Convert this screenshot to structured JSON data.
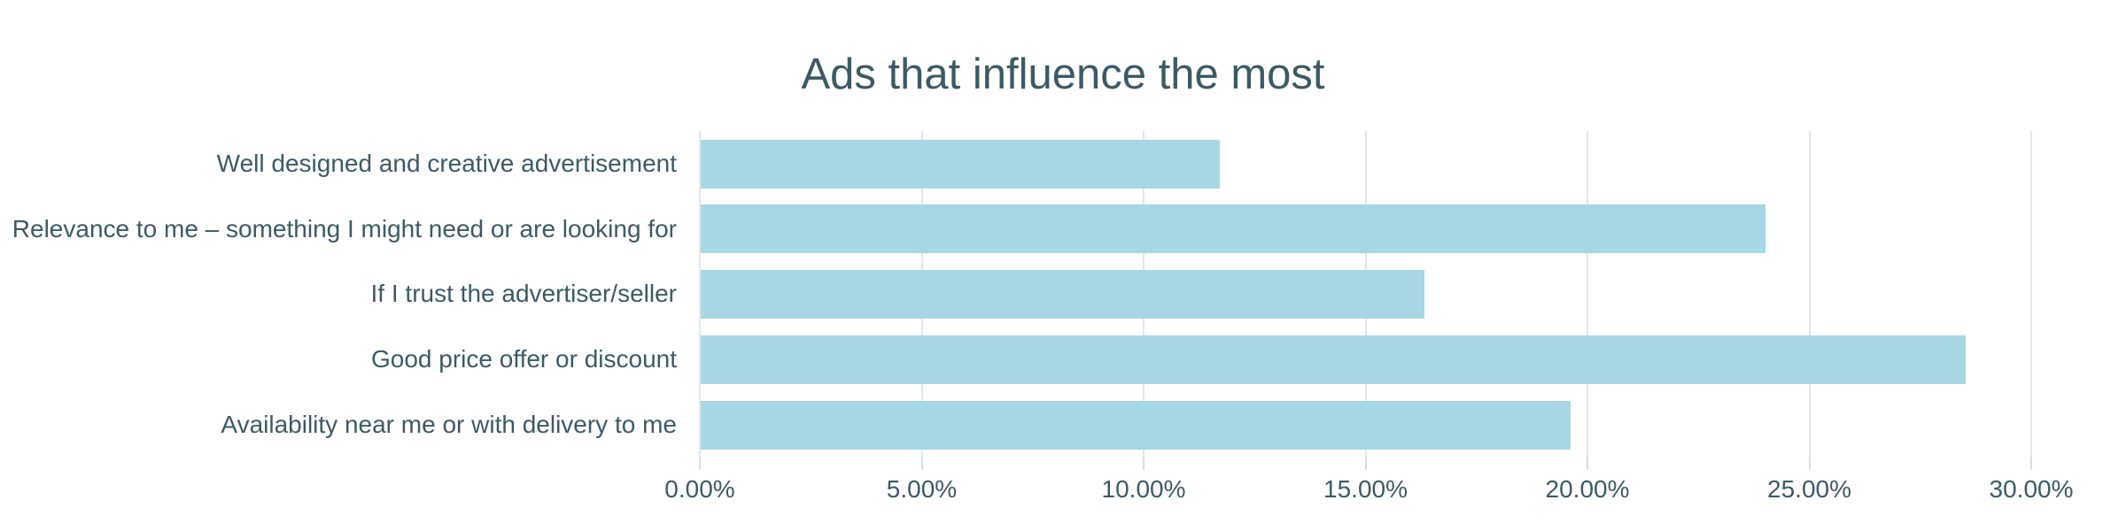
{
  "title": "Ads that influence the most",
  "colors": {
    "background": "#ffffff",
    "bar_fill": "#a6d7e2",
    "gridline": "#dde9ef",
    "tick_mark": "#cfe0e8",
    "text": "#3c5a66"
  },
  "chart_data": {
    "type": "bar",
    "orientation": "horizontal",
    "title": "Ads that influence the most",
    "categories": [
      "Well designed and creative advertisement",
      "Relevance to me – something I might need or are looking for",
      "If I trust the advertiser/seller",
      "Good price offer or discount",
      "Availability near me or with delivery to me"
    ],
    "values": [
      11.7,
      24.0,
      16.3,
      28.5,
      19.6
    ],
    "value_unit": "percent",
    "xlabel": "",
    "ylabel": "",
    "xlim": [
      0,
      30
    ],
    "x_tick_labels": [
      "0.00%",
      "5.00%",
      "10.00%",
      "15.00%",
      "20.00%",
      "25.00%",
      "30.00%"
    ],
    "grid": "vertical",
    "legend": "none",
    "data_labels": "none"
  }
}
